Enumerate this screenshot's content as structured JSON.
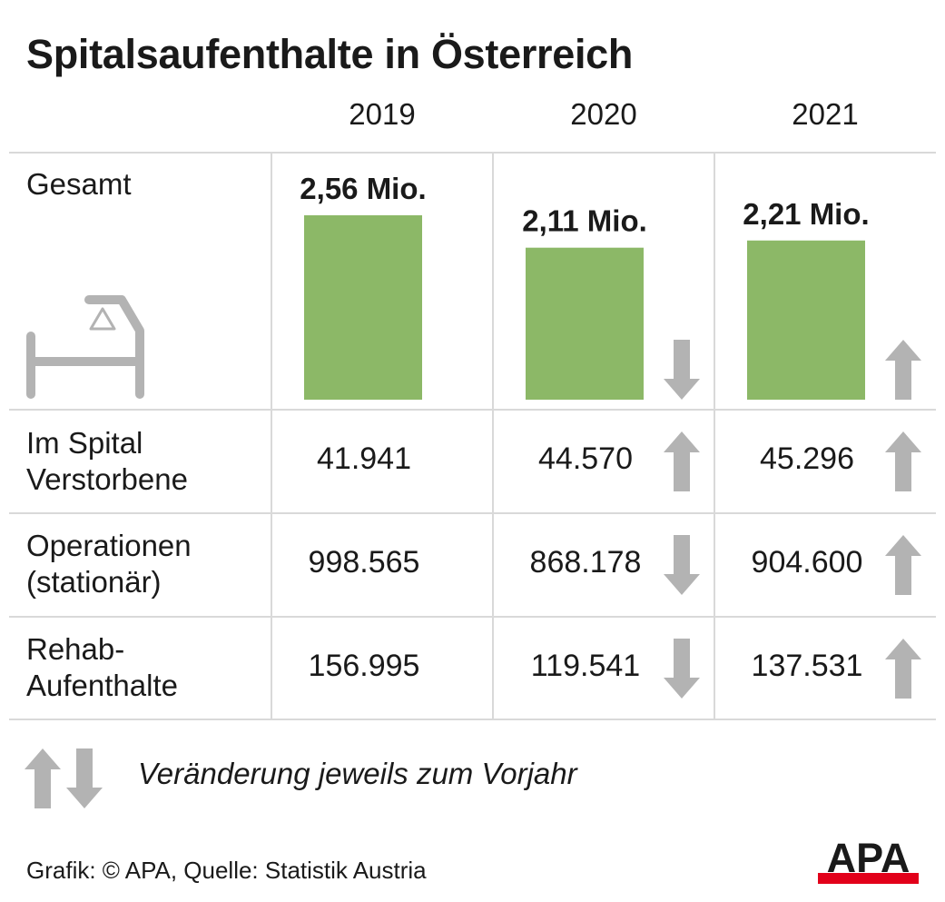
{
  "title": "Spitalsaufenthalte in Österreich",
  "years": [
    "2019",
    "2020",
    "2021"
  ],
  "colors": {
    "bar": "#8cb867",
    "arrow": "#b3b3b3",
    "grid": "#d9d9d9",
    "logo_red": "#e2001a"
  },
  "rows": [
    {
      "label": "Gesamt"
    },
    {
      "label_lines": [
        "Im Spital",
        "Verstorbene"
      ],
      "values": [
        "41.941",
        "44.570",
        "45.296"
      ],
      "trend": [
        null,
        "up",
        "up"
      ]
    },
    {
      "label_lines": [
        "Operationen",
        "(stationär)"
      ],
      "values": [
        "998.565",
        "868.178",
        "904.600"
      ],
      "trend": [
        null,
        "down",
        "up"
      ]
    },
    {
      "label_lines": [
        "Rehab-",
        "Aufenthalte"
      ],
      "values": [
        "156.995",
        "119.541",
        "137.531"
      ],
      "trend": [
        null,
        "down",
        "up"
      ]
    }
  ],
  "chart_data": {
    "type": "bar",
    "title": "Spitalsaufenthalte in Österreich",
    "categories": [
      "2019",
      "2020",
      "2021"
    ],
    "values": [
      2.56,
      2.11,
      2.21
    ],
    "value_labels": [
      "2,56 Mio.",
      "2,11 Mio.",
      "2,21 Mio."
    ],
    "trend": [
      null,
      "down",
      "up"
    ],
    "ylabel": "Gesamt",
    "ylim": [
      0,
      2.56
    ]
  },
  "legend": {
    "text": "Veränderung jeweils zum Vorjahr"
  },
  "footer": {
    "source": "Grafik: © APA, Quelle: Statistik Austria"
  },
  "logo": {
    "text": "APA"
  },
  "icons": {
    "bed": "hospital-bed-icon",
    "up": "arrow-up-icon",
    "down": "arrow-down-icon"
  }
}
